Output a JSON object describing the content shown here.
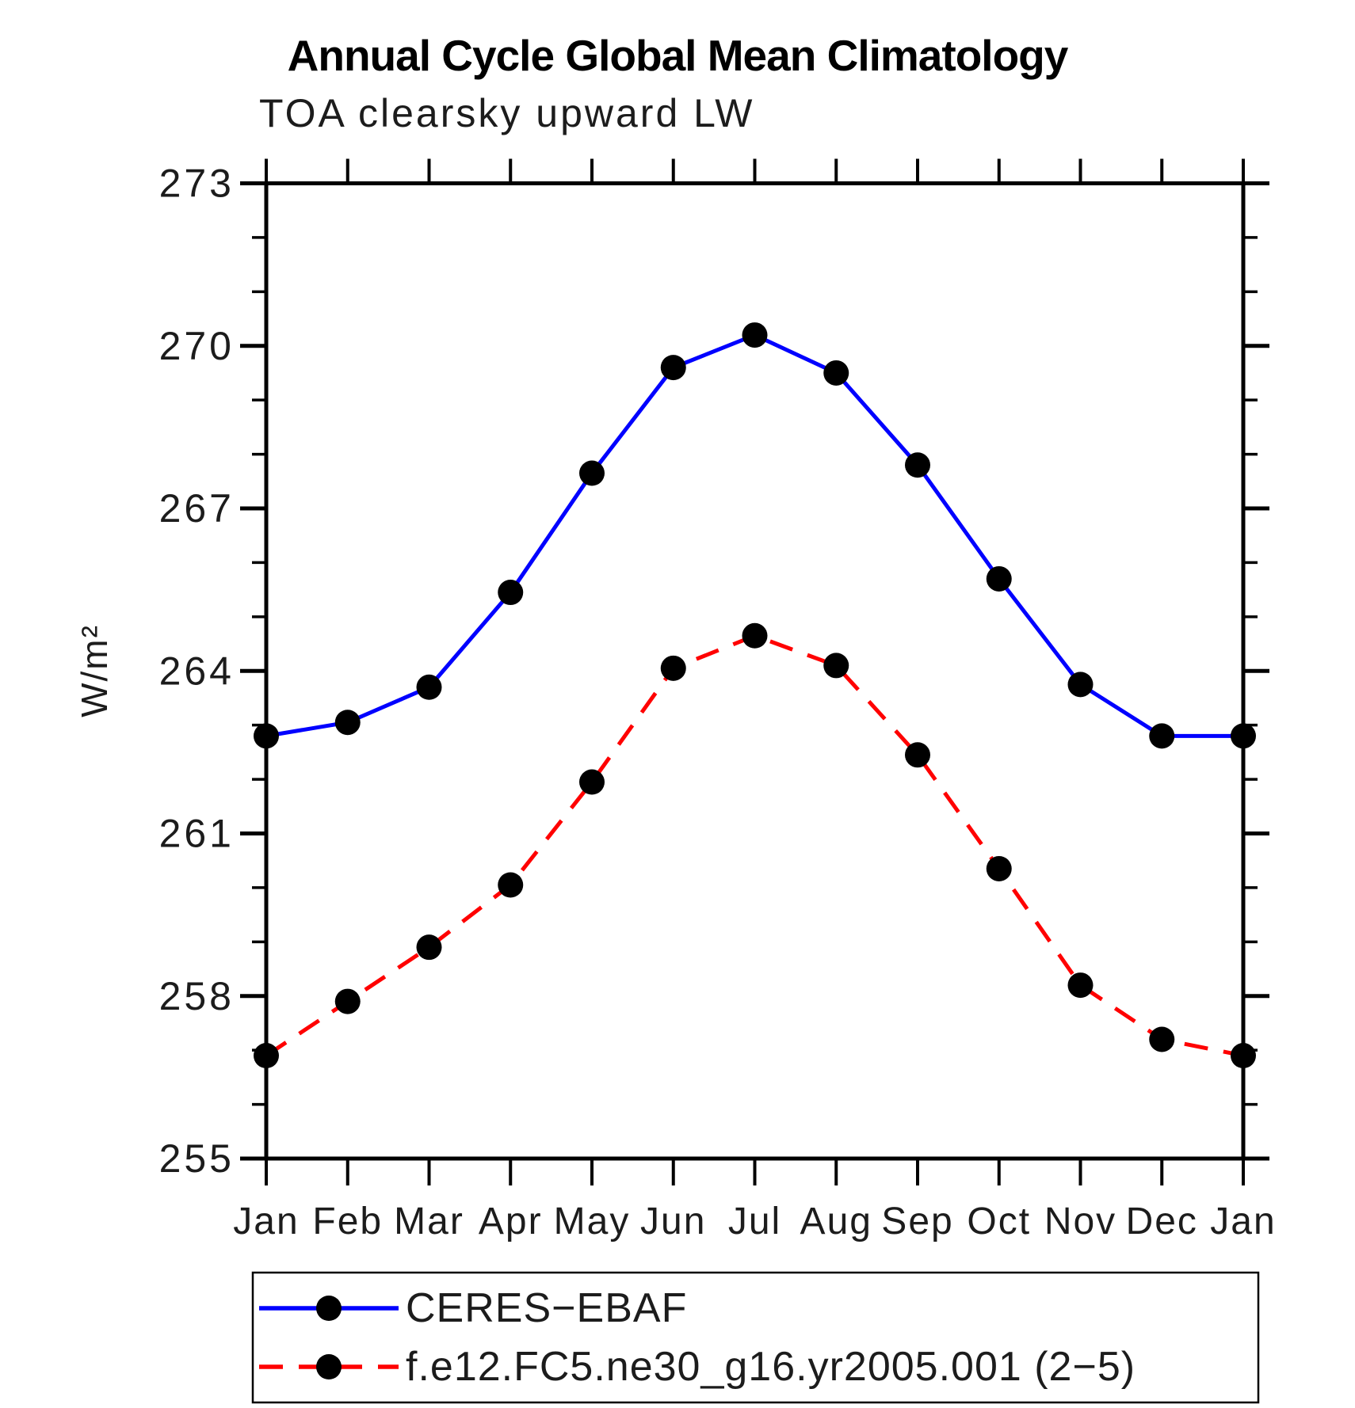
{
  "title": "Annual Cycle Global Mean Climatology",
  "subtitle": "TOA clearsky upward LW",
  "chart_data": {
    "type": "line",
    "x_categories": [
      "Jan",
      "Feb",
      "Mar",
      "Apr",
      "May",
      "Jun",
      "Jul",
      "Aug",
      "Sep",
      "Oct",
      "Nov",
      "Dec",
      "Jan"
    ],
    "ylabel": "W/m²",
    "ylim": [
      255,
      273
    ],
    "ytick_major": [
      255,
      258,
      261,
      264,
      267,
      270,
      273
    ],
    "ytick_minor_step": 1,
    "grid": "off",
    "legend_position": "bottom-left-box",
    "axis_color": "#000000",
    "marker_color": "#000000",
    "series": [
      {
        "name": "CERES−EBAF",
        "color": "#0000ff",
        "style": "solid",
        "values": [
          262.8,
          263.05,
          263.7,
          265.45,
          267.65,
          269.6,
          270.2,
          269.5,
          267.8,
          265.7,
          263.75,
          262.8,
          262.8
        ]
      },
      {
        "name": "f.e12.FC5.ne30_g16.yr2005.001 (2−5)",
        "color": "#ff0000",
        "style": "dashed",
        "values": [
          256.9,
          257.9,
          258.9,
          260.05,
          261.95,
          264.05,
          264.65,
          264.1,
          262.45,
          260.35,
          258.2,
          257.2,
          256.9
        ]
      }
    ]
  }
}
